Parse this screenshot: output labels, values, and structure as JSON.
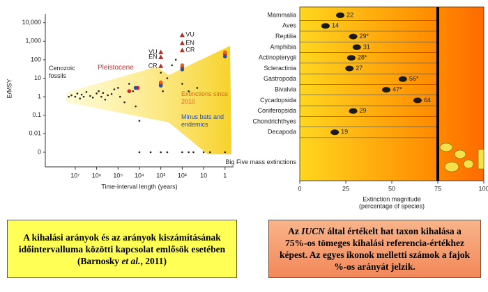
{
  "chart_data": [
    {
      "type": "scatter",
      "ylabel": "E/MSY",
      "xlabel": "Time-interval length (years)",
      "xlog": true,
      "ylog": true,
      "xlim": [
        250000000,
        0.4
      ],
      "ylim": [
        0.00025,
        30000
      ],
      "xticks": [
        {
          "value": 10000000,
          "label": "10⁷"
        },
        {
          "value": 1000000,
          "label": "10⁶"
        },
        {
          "value": 100000,
          "label": "10⁵"
        },
        {
          "value": 10000,
          "label": "10⁴"
        },
        {
          "value": 1000,
          "label": "10³"
        },
        {
          "value": 100,
          "label": "10²"
        },
        10,
        1
      ],
      "yticks": [
        {
          "value": 10000,
          "label": "10,000"
        },
        {
          "value": 1000,
          "label": "1,000"
        },
        100,
        10,
        1,
        0.1,
        0.01,
        0
      ],
      "annotations": [
        {
          "text": "Cenozoic fossils",
          "color": "#222222"
        },
        {
          "text": "Pleistocene",
          "color": "#e02020"
        },
        {
          "text": "Extinctions since 2010",
          "color": "#e0651a"
        },
        {
          "text": "Minus bats and endemics",
          "color": "#2a4f9a"
        }
      ],
      "series": [
        {
          "color": "#222222",
          "marker": "dot",
          "x": [
            20000000,
            15000000,
            10000000,
            8000000,
            6000000,
            5000000,
            4000000,
            3000000,
            2000000,
            1500000,
            1000000,
            800000,
            600000,
            500000,
            400000,
            300000,
            200000,
            150000,
            100000,
            80000,
            50000,
            30000,
            20000,
            15000,
            10000,
            10000,
            3000,
            1000,
            500,
            1000,
            1000,
            800,
            500,
            300,
            200,
            100,
            100,
            50,
            30,
            10,
            100,
            5,
            1,
            50,
            20
          ],
          "y": [
            1,
            1.2,
            1,
            1.5,
            0.8,
            1.3,
            1,
            1.8,
            1.1,
            0.9,
            1.5,
            2,
            1,
            1.6,
            0.7,
            1.2,
            1.4,
            2.5,
            3,
            1,
            0.5,
            5,
            2,
            0.3,
            0.05,
            0,
            0,
            0,
            0,
            20,
            5,
            2,
            10,
            50,
            100,
            30,
            5,
            0,
            0,
            0,
            0,
            0,
            0,
            2,
            3
          ]
        },
        {
          "color": "#e02020",
          "marker": "dot",
          "x": [
            30000,
            12000,
            1000,
            100,
            1
          ],
          "y": [
            2,
            3,
            5,
            40,
            200
          ]
        },
        {
          "color": "#2a4f9a",
          "marker": "dot",
          "x": [
            15000,
            1000,
            100,
            1
          ],
          "y": [
            3,
            4,
            30,
            150
          ]
        },
        {
          "color": "#e0651a",
          "marker": "dot",
          "x": [
            1000,
            100,
            1
          ],
          "y": [
            6,
            50,
            250
          ]
        },
        {
          "color": "#b0302a",
          "marker": "triangle",
          "x": [
            1000,
            1000,
            1000,
            100,
            100,
            100
          ],
          "y": [
            260,
            140,
            46,
            2200,
            800,
            330
          ],
          "point_labels": [
            "VU",
            "EN",
            "CR",
            "VU",
            "EN",
            "CR"
          ]
        }
      ]
    },
    {
      "type": "bar",
      "orientation": "horizontal",
      "xlabel": [
        "Extinction magnitude",
        "(percentage of species)"
      ],
      "categories": [
        "Mammalia",
        "Aves",
        "Reptilia",
        "Amphibia",
        "Actinopterygii",
        "Scleractinia",
        "Gastropoda",
        "Bivalvia",
        "Cycadopsida",
        "Coniferopsida",
        "Chondrichthyes",
        "Decapoda"
      ],
      "values": [
        22,
        14,
        29,
        31,
        28,
        27,
        56,
        47,
        64,
        29,
        null,
        19
      ],
      "value_labels": [
        "22",
        "14",
        "29*",
        "31",
        "28*",
        "27",
        "56*",
        "47*",
        "64",
        "29",
        null,
        "19"
      ],
      "color": "#1a1a1a",
      "reference_label": "Big Five mass extinctions",
      "reference_value": 75,
      "xlim": [
        0,
        100
      ],
      "xticks": [
        0,
        25,
        50,
        75,
        100
      ]
    }
  ],
  "captions": [
    {
      "parts": [
        "A kihalási arányok és az arányok kiszámításának időintervalluma közötti kapcsolat emlősök esetében (Barnosky ",
        "et al.",
        ", 2011)"
      ]
    },
    {
      "parts": [
        "Az ",
        "IUCN",
        " által értékelt hat taxon kihalása a 75%-os tömeges kihalási referencia-értékhez képest. Az egyes ikonok melletti számok a fajok %-os arányát jelzik."
      ]
    }
  ]
}
